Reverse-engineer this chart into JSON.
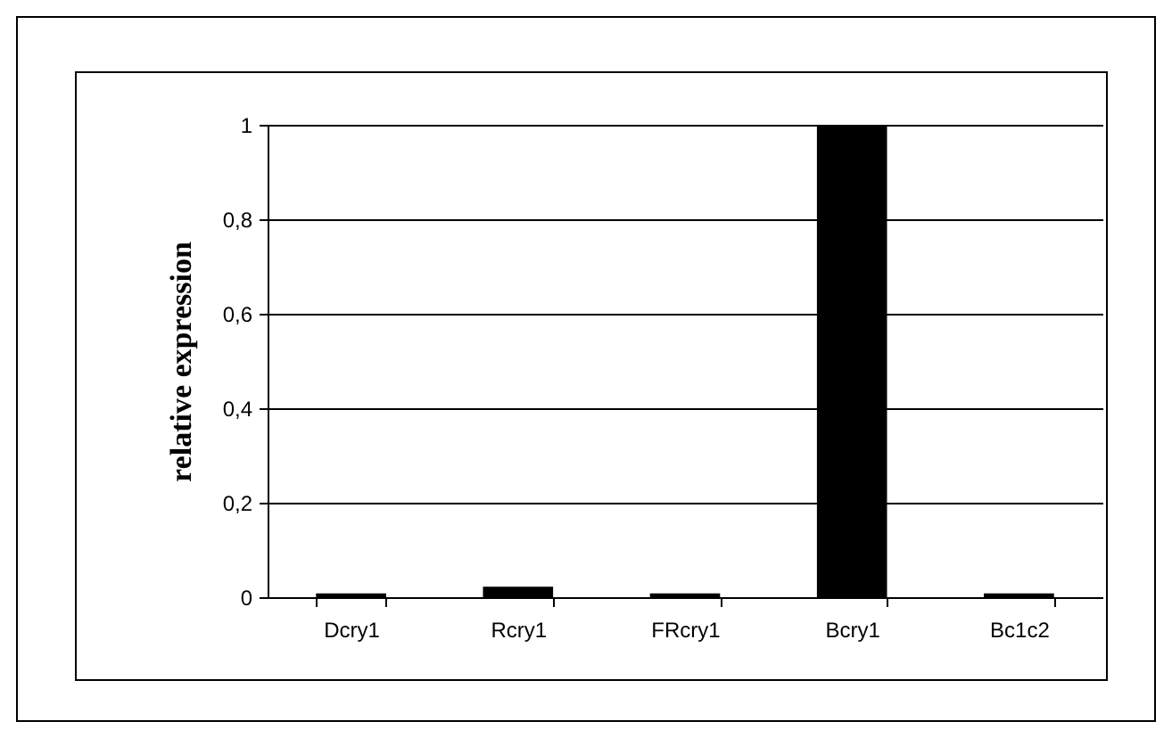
{
  "chart_data": {
    "type": "bar",
    "ylabel": "relative expression",
    "categories": [
      "Dcry1",
      "Rcry1",
      "FRcry1",
      "Bcry1",
      "Bc1c2"
    ],
    "values": [
      0.008,
      0.022,
      0.008,
      1,
      0.008
    ],
    "color": "#000000",
    "ylim": [
      0,
      1
    ],
    "yticks": [
      0,
      {
        "value": 0.2,
        "label": "0,2"
      },
      {
        "value": 0.4,
        "label": "0,4"
      },
      {
        "value": 0.6,
        "label": "0,6"
      },
      {
        "value": 0.8,
        "label": "0,8"
      },
      1
    ],
    "grid": "y"
  }
}
